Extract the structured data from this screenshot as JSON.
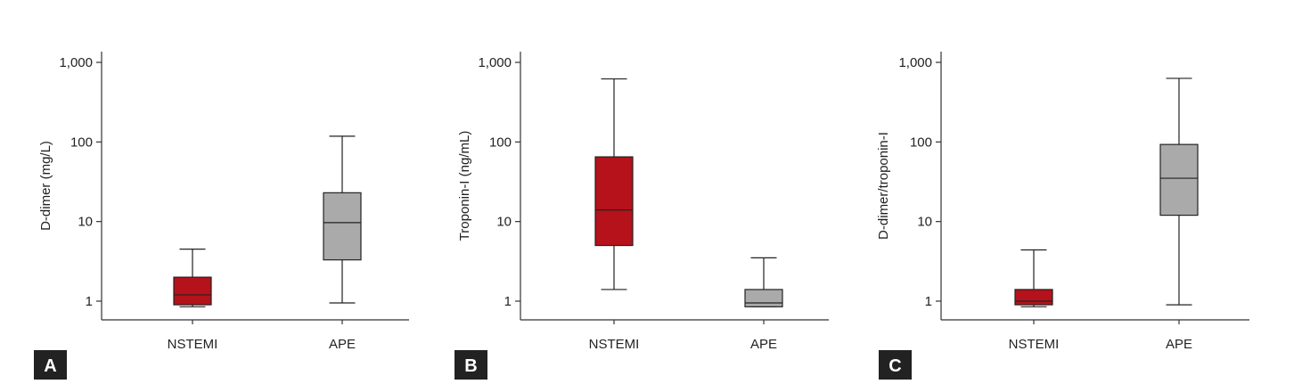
{
  "figure": {
    "colors": {
      "nstemi": "#b5121b",
      "ape": "#aaaaaa",
      "axis": "#333333",
      "letter_bg": "#222222"
    }
  },
  "chart_data": [
    {
      "type": "box",
      "panel_letter": "A",
      "ylabel": "D-dimer (mg/L)",
      "yscale": "log",
      "ylim": [
        0.55,
        1100
      ],
      "yticks": [
        1,
        10,
        100,
        1000
      ],
      "ytick_labels": [
        "1",
        "10",
        "100",
        "1,000"
      ],
      "categories": [
        "NSTEMI",
        "APE"
      ],
      "boxes": [
        {
          "category": "NSTEMI",
          "whisker_low": 0.85,
          "q1": 0.9,
          "median": 1.2,
          "q3": 2.0,
          "whisker_high": 4.5,
          "color": "#b5121b"
        },
        {
          "category": "APE",
          "whisker_low": 0.95,
          "q1": 3.3,
          "median": 9.7,
          "q3": 23,
          "whisker_high": 118,
          "color": "#aaaaaa"
        }
      ]
    },
    {
      "type": "box",
      "panel_letter": "B",
      "ylabel": "Troponin-I (ng/mL)",
      "yscale": "log",
      "ylim": [
        0.55,
        1100
      ],
      "yticks": [
        1,
        10,
        100,
        1000
      ],
      "ytick_labels": [
        "1",
        "10",
        "100",
        "1,000"
      ],
      "categories": [
        "NSTEMI",
        "APE"
      ],
      "boxes": [
        {
          "category": "NSTEMI",
          "whisker_low": 1.4,
          "q1": 5.0,
          "median": 14,
          "q3": 65,
          "whisker_high": 620,
          "color": "#b5121b"
        },
        {
          "category": "APE",
          "whisker_low": 0.85,
          "q1": 0.85,
          "median": 0.95,
          "q3": 1.4,
          "whisker_high": 3.5,
          "color": "#aaaaaa"
        }
      ]
    },
    {
      "type": "box",
      "panel_letter": "C",
      "ylabel": "D-dimer/troponin-I",
      "yscale": "log",
      "ylim": [
        0.55,
        1100
      ],
      "yticks": [
        1,
        10,
        100,
        1000
      ],
      "ytick_labels": [
        "1",
        "10",
        "100",
        "1,000"
      ],
      "categories": [
        "NSTEMI",
        "APE"
      ],
      "boxes": [
        {
          "category": "NSTEMI",
          "whisker_low": 0.85,
          "q1": 0.9,
          "median": 1.0,
          "q3": 1.4,
          "whisker_high": 4.4,
          "color": "#b5121b"
        },
        {
          "category": "APE",
          "whisker_low": 0.9,
          "q1": 12,
          "median": 35,
          "q3": 93,
          "whisker_high": 630,
          "color": "#aaaaaa"
        }
      ]
    }
  ]
}
